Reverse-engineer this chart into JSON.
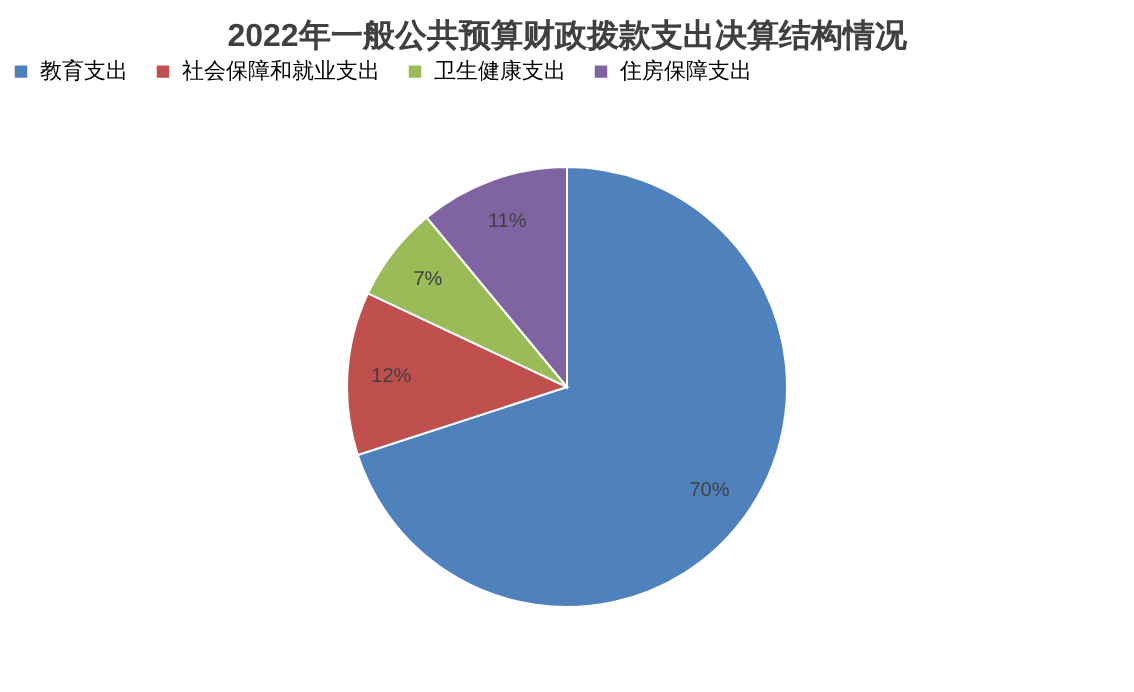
{
  "chart_data": {
    "type": "pie",
    "title": "2022年一般公共预算财政拨款支出决算结构情况",
    "categories": [
      "教育支出",
      "社会保障和就业支出",
      "卫生健康支出",
      "住房保障支出"
    ],
    "values": [
      70,
      12,
      7,
      11
    ],
    "colors": [
      "#4f81bd",
      "#c0504d",
      "#9bbb59",
      "#8064a2"
    ],
    "value_labels": [
      "70%",
      "12%",
      "7%",
      "11%"
    ],
    "legend": "top"
  }
}
